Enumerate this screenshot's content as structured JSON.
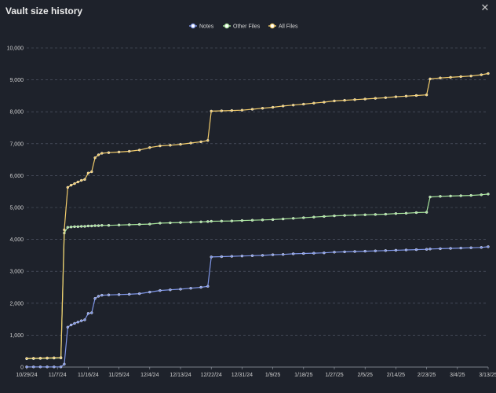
{
  "window": {
    "title": "Vault size history",
    "close_icon": "close-icon"
  },
  "chart_data": {
    "type": "line",
    "title": "",
    "xlabel": "",
    "ylabel": "",
    "ylim": [
      0,
      10000
    ],
    "grid": true,
    "legend_position": "top-center",
    "yticks": [
      0,
      1000,
      2000,
      3000,
      4000,
      5000,
      6000,
      7000,
      8000,
      9000,
      10000
    ],
    "ytick_labels": [
      "0",
      "1,000",
      "2,000",
      "3,000",
      "4,000",
      "5,000",
      "6,000",
      "7,000",
      "8,000",
      "9,000",
      "10,000"
    ],
    "xtick_labels": [
      "10/29/24",
      "11/7/24",
      "11/16/24",
      "11/25/24",
      "12/4/24",
      "12/13/24",
      "12/22/24",
      "12/31/24",
      "1/9/25",
      "1/18/25",
      "1/27/25",
      "2/5/25",
      "2/14/25",
      "2/23/25",
      "3/4/25",
      "3/13/25"
    ],
    "x": [
      "10/29/24",
      "10/31/24",
      "11/2/24",
      "11/4/24",
      "11/6/24",
      "11/8/24",
      "11/9/24",
      "11/10/24",
      "11/11/24",
      "11/12/24",
      "11/13/24",
      "11/14/24",
      "11/15/24",
      "11/16/24",
      "11/17/24",
      "11/18/24",
      "11/19/24",
      "11/20/24",
      "11/22/24",
      "11/25/24",
      "11/28/24",
      "12/1/24",
      "12/4/24",
      "12/7/24",
      "12/10/24",
      "12/13/24",
      "12/16/24",
      "12/19/24",
      "12/21/24",
      "12/22/24",
      "12/25/24",
      "12/28/24",
      "12/31/24",
      "1/3/25",
      "1/6/25",
      "1/9/25",
      "1/12/25",
      "1/15/25",
      "1/18/25",
      "1/21/25",
      "1/24/25",
      "1/27/25",
      "1/30/25",
      "2/2/25",
      "2/5/25",
      "2/8/25",
      "2/11/25",
      "2/14/25",
      "2/17/25",
      "2/20/25",
      "2/23/25",
      "2/24/25",
      "2/27/25",
      "3/2/25",
      "3/5/25",
      "3/8/25",
      "3/11/25",
      "3/13/25"
    ],
    "series": [
      {
        "name": "Notes",
        "color": "#7f96e8",
        "values": [
          5,
          5,
          5,
          5,
          5,
          5,
          90,
          1250,
          1320,
          1370,
          1410,
          1450,
          1480,
          1680,
          1700,
          2150,
          2220,
          2250,
          2260,
          2270,
          2280,
          2300,
          2350,
          2400,
          2420,
          2440,
          2470,
          2500,
          2530,
          3450,
          3460,
          3470,
          3480,
          3490,
          3500,
          3520,
          3530,
          3550,
          3560,
          3570,
          3580,
          3600,
          3610,
          3620,
          3630,
          3640,
          3650,
          3660,
          3670,
          3680,
          3690,
          3700,
          3710,
          3720,
          3730,
          3740,
          3750,
          3770
        ]
      },
      {
        "name": "Other Files",
        "color": "#a6e39a",
        "values": [
          260,
          265,
          270,
          275,
          280,
          285,
          4200,
          4380,
          4390,
          4400,
          4400,
          4410,
          4410,
          4420,
          4420,
          4430,
          4430,
          4440,
          4440,
          4450,
          4460,
          4470,
          4480,
          4510,
          4520,
          4530,
          4540,
          4550,
          4560,
          4570,
          4575,
          4580,
          4590,
          4600,
          4610,
          4620,
          4640,
          4660,
          4680,
          4700,
          4720,
          4740,
          4750,
          4760,
          4770,
          4780,
          4790,
          4810,
          4820,
          4840,
          4850,
          5330,
          5350,
          5360,
          5370,
          5380,
          5400,
          5420
        ]
      },
      {
        "name": "All Files",
        "color": "#f2cc6b",
        "values": [
          270,
          275,
          280,
          285,
          290,
          295,
          4300,
          5630,
          5700,
          5750,
          5800,
          5850,
          5880,
          6080,
          6120,
          6560,
          6650,
          6700,
          6720,
          6740,
          6760,
          6800,
          6880,
          6930,
          6950,
          6980,
          7020,
          7060,
          7100,
          8020,
          8030,
          8040,
          8050,
          8080,
          8110,
          8140,
          8180,
          8210,
          8240,
          8270,
          8300,
          8340,
          8360,
          8380,
          8400,
          8420,
          8440,
          8470,
          8490,
          8510,
          8530,
          9030,
          9060,
          9080,
          9100,
          9120,
          9160,
          9200
        ]
      }
    ]
  }
}
